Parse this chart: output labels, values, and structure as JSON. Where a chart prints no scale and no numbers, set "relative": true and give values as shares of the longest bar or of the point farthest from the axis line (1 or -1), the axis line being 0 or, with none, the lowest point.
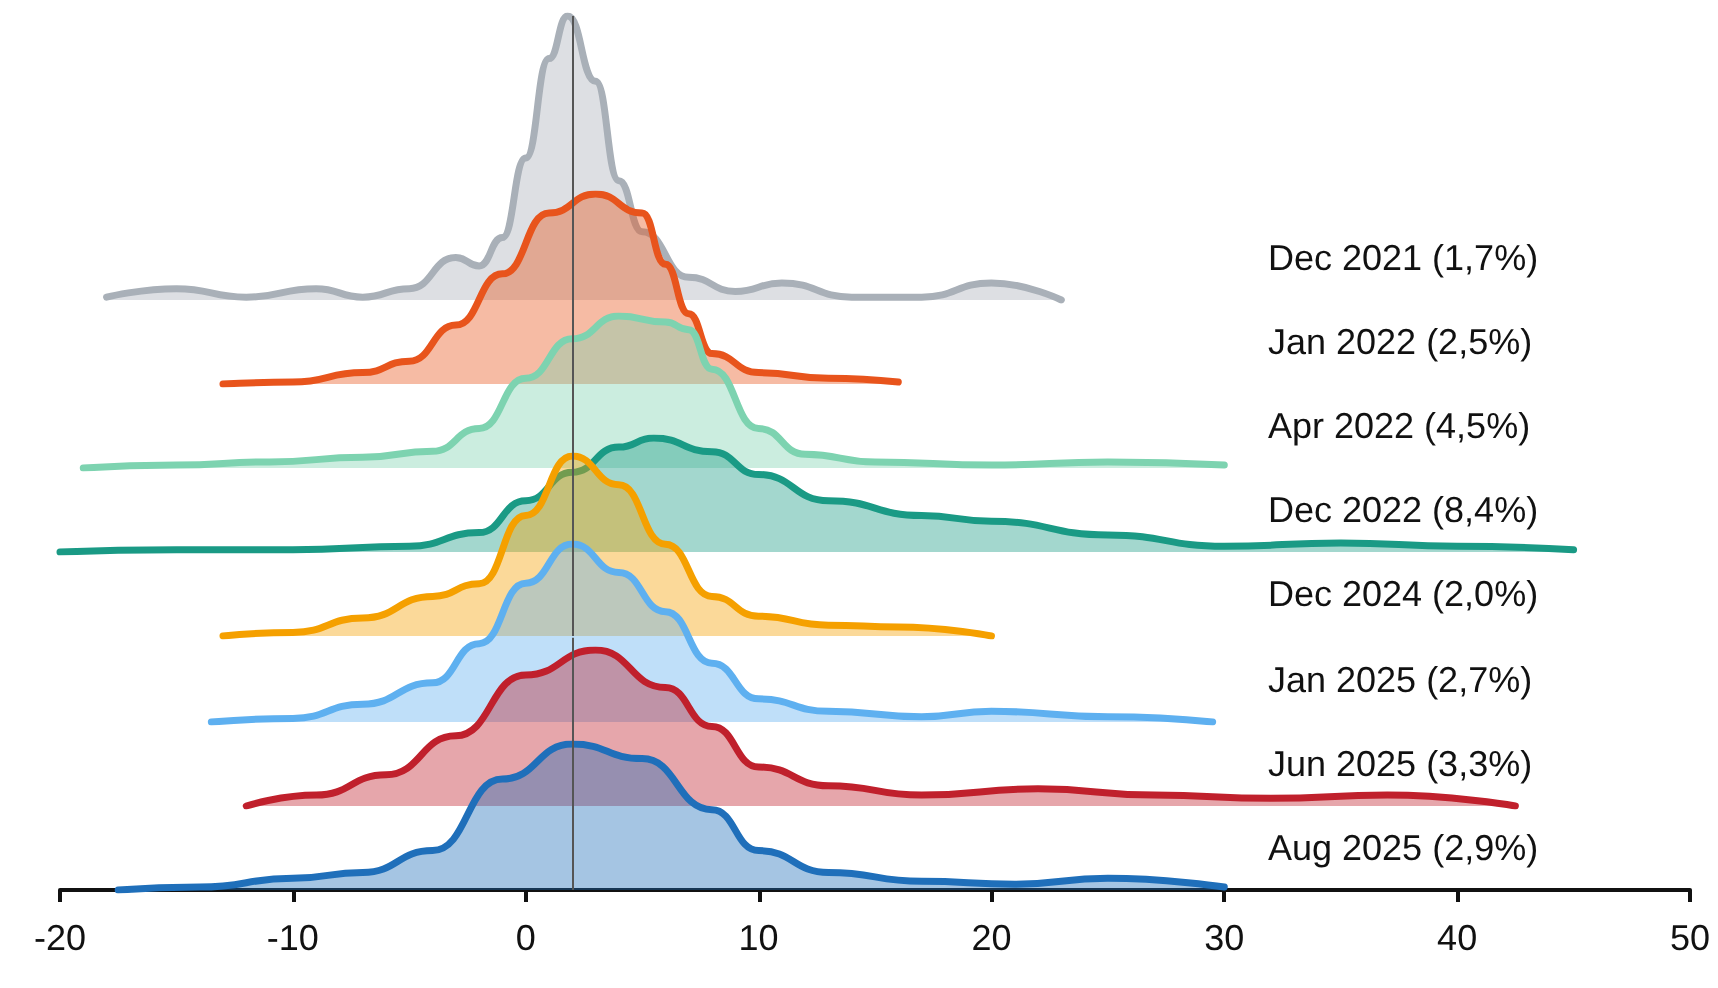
{
  "chart_data": [
    {
      "type": "area",
      "relative": true,
      "title": "Dec 2021 (1,7%)",
      "color": "#a9b0b8",
      "xlim": [
        -20,
        50
      ],
      "tick_labels": false,
      "ref_lines": [
        {
          "axis": "x",
          "value": 2,
          "color": "#555555"
        }
      ],
      "x": [
        -18,
        -15,
        -12,
        -9,
        -7,
        -5,
        -3,
        -2,
        -1,
        0,
        1,
        1.8,
        3,
        4,
        5,
        7,
        9,
        11,
        14,
        17,
        20,
        23
      ],
      "values": [
        0.01,
        0.04,
        0.01,
        0.04,
        0.01,
        0.04,
        0.15,
        0.12,
        0.22,
        0.5,
        0.85,
        1,
        0.77,
        0.42,
        0.24,
        0.08,
        0.03,
        0.06,
        0.01,
        0.01,
        0.06,
        0
      ]
    },
    {
      "type": "area",
      "relative": true,
      "title": "Jan 2022 (2,5%)",
      "color": "#e8541c",
      "xlim": [
        -20,
        50
      ],
      "tick_labels": false,
      "ref_lines": [
        {
          "axis": "x",
          "value": 2,
          "color": "#555555"
        }
      ],
      "x": [
        -13,
        -10,
        -7,
        -5,
        -3,
        -1,
        1,
        3,
        5,
        6,
        7,
        8,
        10,
        13,
        16
      ],
      "values": [
        0,
        0.01,
        0.06,
        0.12,
        0.31,
        0.58,
        0.9,
        1,
        0.9,
        0.63,
        0.37,
        0.16,
        0.06,
        0.03,
        0.01
      ]
    },
    {
      "type": "area",
      "relative": true,
      "title": "Apr 2022 (4,5%)",
      "color": "#7dd3b0",
      "xlim": [
        -20,
        50
      ],
      "tick_labels": false,
      "ref_lines": [
        {
          "axis": "x",
          "value": 2,
          "color": "#555555"
        }
      ],
      "x": [
        -19,
        -15,
        -11,
        -7,
        -4,
        -2,
        0,
        2,
        4,
        6,
        7,
        8,
        10,
        12,
        15,
        20,
        25,
        30
      ],
      "values": [
        0,
        0.02,
        0.04,
        0.07,
        0.11,
        0.26,
        0.59,
        0.85,
        1,
        0.96,
        0.91,
        0.65,
        0.26,
        0.09,
        0.04,
        0.02,
        0.04,
        0.02
      ]
    },
    {
      "type": "area",
      "relative": true,
      "title": "Dec 2022 (8,4%)",
      "color": "#1a9a85",
      "xlim": [
        -20,
        50
      ],
      "tick_labels": false,
      "ref_lines": [
        {
          "axis": "x",
          "value": 2,
          "color": "#555555"
        }
      ],
      "x": [
        -20,
        -15,
        -10,
        -5,
        -2,
        0,
        2,
        4,
        5.5,
        8,
        10,
        13,
        17,
        20,
        25,
        30,
        35,
        40,
        45
      ],
      "values": [
        0,
        0.02,
        0.02,
        0.05,
        0.17,
        0.45,
        0.7,
        0.92,
        1,
        0.88,
        0.68,
        0.45,
        0.32,
        0.27,
        0.15,
        0.05,
        0.08,
        0.05,
        0.02
      ]
    },
    {
      "type": "area",
      "relative": true,
      "title": "Dec 2024 (2,0%)",
      "color": "#f5a000",
      "xlim": [
        -20,
        50
      ],
      "tick_labels": false,
      "ref_lines": [
        {
          "axis": "x",
          "value": 2,
          "color": "#555555"
        }
      ],
      "x": [
        -13,
        -10,
        -7,
        -4,
        -2,
        0,
        2,
        4,
        6,
        8,
        10,
        13,
        16,
        20
      ],
      "values": [
        0,
        0.02,
        0.1,
        0.22,
        0.29,
        0.67,
        1,
        0.84,
        0.51,
        0.22,
        0.11,
        0.06,
        0.05,
        0
      ]
    },
    {
      "type": "area",
      "relative": true,
      "title": "Jan 2025 (2,7%)",
      "color": "#5eb0f0",
      "xlim": [
        -20,
        50
      ],
      "tick_labels": false,
      "ref_lines": [
        {
          "axis": "x",
          "value": 2,
          "color": "#555555"
        }
      ],
      "x": [
        -13.5,
        -10,
        -7,
        -4,
        -2,
        0,
        2,
        4,
        6,
        8,
        10,
        13,
        17,
        20,
        25,
        29.5
      ],
      "values": [
        0,
        0.02,
        0.1,
        0.22,
        0.44,
        0.78,
        1,
        0.84,
        0.62,
        0.33,
        0.13,
        0.06,
        0.03,
        0.06,
        0.03,
        0
      ]
    },
    {
      "type": "area",
      "relative": true,
      "title": "Jun 2025 (3,3%)",
      "color": "#c0202c",
      "xlim": [
        -20,
        50
      ],
      "tick_labels": false,
      "ref_lines": [
        {
          "axis": "x",
          "value": 2,
          "color": "#555555"
        }
      ],
      "x": [
        -12,
        -9,
        -6,
        -3,
        0,
        3,
        6,
        8,
        10,
        13,
        17,
        22,
        27,
        32,
        37,
        42.5
      ],
      "values": [
        0,
        0.07,
        0.2,
        0.45,
        0.84,
        1,
        0.76,
        0.51,
        0.25,
        0.13,
        0.07,
        0.11,
        0.07,
        0.05,
        0.07,
        0
      ]
    },
    {
      "type": "area",
      "relative": true,
      "title": "Aug 2025 (2,9%)",
      "color": "#1f6fba",
      "xlim": [
        -20,
        50
      ],
      "xticks": [
        -20,
        -10,
        0,
        10,
        20,
        30,
        40,
        50
      ],
      "tick_labels": "x",
      "ref_lines": [
        {
          "axis": "x",
          "value": 2,
          "color": "#555555"
        }
      ],
      "x": [
        -17.5,
        -14,
        -10,
        -7,
        -4,
        -1,
        2,
        5,
        8,
        10,
        13,
        17,
        21,
        25,
        30
      ],
      "values": [
        0,
        0.02,
        0.08,
        0.12,
        0.27,
        0.76,
        1,
        0.9,
        0.55,
        0.27,
        0.12,
        0.06,
        0.04,
        0.08,
        0.02
      ]
    }
  ]
}
